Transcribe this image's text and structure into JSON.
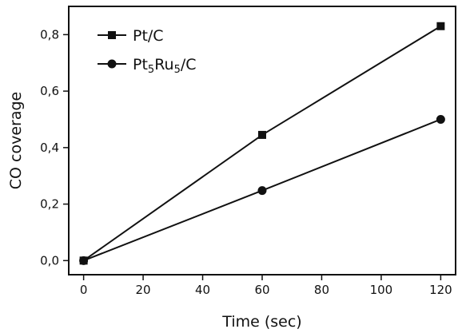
{
  "chart_data": {
    "type": "line",
    "xlabel": "Time (sec)",
    "ylabel": "CO coverage",
    "xlim": [
      -5,
      125
    ],
    "ylim": [
      -0.05,
      0.9
    ],
    "xticks": [
      0,
      20,
      40,
      60,
      80,
      100,
      120
    ],
    "xtick_labels": [
      "0",
      "20",
      "40",
      "60",
      "80",
      "100",
      "120"
    ],
    "yticks": [
      0.0,
      0.2,
      0.4,
      0.6,
      0.8
    ],
    "ytick_labels": [
      "0,0",
      "0,2",
      "0,4",
      "0,6",
      "0,8"
    ],
    "grid": false,
    "legend_position": "top-left",
    "series": [
      {
        "name": "Pt/C",
        "name_parts": [
          {
            "text": "Pt/C",
            "sub": false
          }
        ],
        "marker": "square",
        "x": [
          0,
          60,
          120
        ],
        "y": [
          0.0,
          0.445,
          0.83
        ]
      },
      {
        "name": "Pt5Ru5/C",
        "name_parts": [
          {
            "text": "Pt",
            "sub": false
          },
          {
            "text": "5",
            "sub": true
          },
          {
            "text": "Ru",
            "sub": false
          },
          {
            "text": "5",
            "sub": true
          },
          {
            "text": "/C",
            "sub": false
          }
        ],
        "marker": "circle",
        "x": [
          0,
          60,
          120
        ],
        "y": [
          0.0,
          0.248,
          0.5
        ]
      }
    ]
  }
}
